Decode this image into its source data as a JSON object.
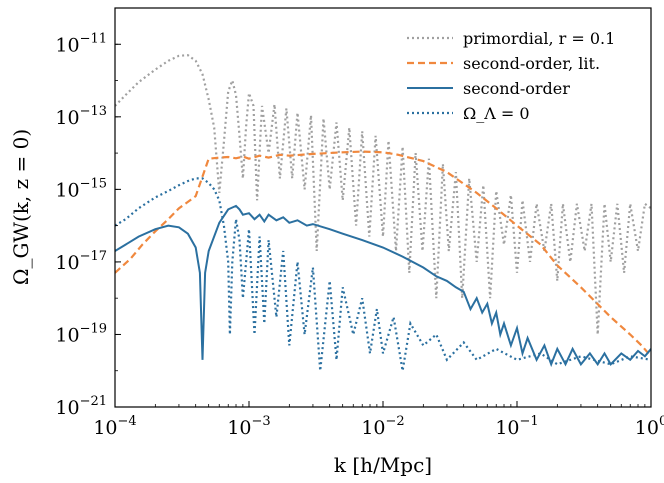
{
  "chart_data": {
    "type": "line",
    "xlabel": "k [h/Mpc]",
    "ylabel": "Ω_GW(k, z = 0)",
    "x_scale": "log",
    "y_scale": "log",
    "xlim": [
      0.0001,
      1
    ],
    "ylim": [
      1e-21,
      1e-10
    ],
    "x_ticks": [
      {
        "value": 0.0001,
        "base": "10",
        "exp": "−4"
      },
      {
        "value": 0.001,
        "base": "10",
        "exp": "−3"
      },
      {
        "value": 0.01,
        "base": "10",
        "exp": "−2"
      },
      {
        "value": 0.1,
        "base": "10",
        "exp": "−1"
      },
      {
        "value": 1,
        "base": "10",
        "exp": "0"
      }
    ],
    "y_ticks": [
      {
        "value": 1e-21,
        "base": "10",
        "exp": "−21"
      },
      {
        "value": 1e-19,
        "base": "10",
        "exp": "−19"
      },
      {
        "value": 1e-17,
        "base": "10",
        "exp": "−17"
      },
      {
        "value": 1e-15,
        "base": "10",
        "exp": "−15"
      },
      {
        "value": 1e-13,
        "base": "10",
        "exp": "−13"
      },
      {
        "value": 1e-11,
        "base": "10",
        "exp": "−11"
      }
    ],
    "grid": false,
    "legend_position": "top-right",
    "series": [
      {
        "name": "primordial, r = 0.1",
        "color": "#a0a0a0",
        "style": "dotted",
        "points": [
          [
            0.0001,
            2e-13
          ],
          [
            0.00012,
            4e-13
          ],
          [
            0.00015,
            9e-13
          ],
          [
            0.0002,
            2e-12
          ],
          [
            0.00025,
            3.5e-12
          ],
          [
            0.0003,
            4.8e-12
          ],
          [
            0.00035,
            5e-12
          ],
          [
            0.0004,
            3.5e-12
          ],
          [
            0.00045,
            1.5e-12
          ],
          [
            0.0005,
            3e-13
          ],
          [
            0.00055,
            5e-14
          ],
          [
            0.0006,
            8e-16
          ],
          [
            0.00065,
            2e-14
          ],
          [
            0.0007,
            5e-13
          ],
          [
            0.00075,
            1e-12
          ],
          [
            0.0008,
            4e-13
          ],
          [
            0.00085,
            3e-14
          ],
          [
            0.0009,
            2e-15
          ],
          [
            0.00095,
            5e-14
          ],
          [
            0.001,
            4.5e-13
          ],
          [
            0.00108,
            2e-13
          ],
          [
            0.00115,
            5e-16
          ],
          [
            0.00125,
            2e-13
          ],
          [
            0.0014,
            1e-14
          ],
          [
            0.00155,
            2.2e-13
          ],
          [
            0.0017,
            2e-15
          ],
          [
            0.0019,
            1.7e-13
          ],
          [
            0.0021,
            2e-15
          ],
          [
            0.0023,
            1.3e-13
          ],
          [
            0.0026,
            1e-15
          ],
          [
            0.0029,
            1.1e-13
          ],
          [
            0.0032,
            2e-17
          ],
          [
            0.0036,
            9e-14
          ],
          [
            0.004,
            1e-15
          ],
          [
            0.0045,
            7e-14
          ],
          [
            0.005,
            5e-16
          ],
          [
            0.0056,
            5e-14
          ],
          [
            0.0063,
            1e-16
          ],
          [
            0.007,
            4e-14
          ],
          [
            0.0079,
            5e-17
          ],
          [
            0.0088,
            3e-14
          ],
          [
            0.01,
            5e-17
          ],
          [
            0.011,
            2.2e-14
          ],
          [
            0.0125,
            2e-17
          ],
          [
            0.014,
            1.5e-14
          ],
          [
            0.0157,
            5e-18
          ],
          [
            0.0175,
            1e-14
          ],
          [
            0.0197,
            2e-17
          ],
          [
            0.022,
            7e-15
          ],
          [
            0.025,
            1e-18
          ],
          [
            0.028,
            5e-15
          ],
          [
            0.031,
            2e-17
          ],
          [
            0.035,
            3e-15
          ],
          [
            0.039,
            1e-18
          ],
          [
            0.044,
            2e-15
          ],
          [
            0.05,
            1e-17
          ],
          [
            0.056,
            1.3e-15
          ],
          [
            0.063,
            1e-18
          ],
          [
            0.07,
            9e-16
          ],
          [
            0.08,
            3e-17
          ],
          [
            0.09,
            7e-16
          ],
          [
            0.1,
            5e-18
          ],
          [
            0.11,
            5e-16
          ],
          [
            0.125,
            1e-17
          ],
          [
            0.14,
            4e-16
          ],
          [
            0.16,
            2e-17
          ],
          [
            0.18,
            4e-16
          ],
          [
            0.2,
            3e-18
          ],
          [
            0.22,
            4e-16
          ],
          [
            0.25,
            1e-17
          ],
          [
            0.28,
            4e-16
          ],
          [
            0.32,
            2e-17
          ],
          [
            0.36,
            4e-16
          ],
          [
            0.4,
            1e-19
          ],
          [
            0.45,
            4e-16
          ],
          [
            0.5,
            1e-17
          ],
          [
            0.56,
            4e-16
          ],
          [
            0.63,
            5e-18
          ],
          [
            0.7,
            4e-16
          ],
          [
            0.8,
            2e-17
          ],
          [
            0.9,
            4e-16
          ],
          [
            1,
            3e-16
          ]
        ]
      },
      {
        "name": "second-order, lit.",
        "color": "#f0883e",
        "style": "dashed",
        "points": [
          [
            0.0001,
            5e-18
          ],
          [
            0.00013,
            1.2e-17
          ],
          [
            0.00016,
            3e-17
          ],
          [
            0.0002,
            7e-17
          ],
          [
            0.00025,
            1.5e-16
          ],
          [
            0.0003,
            3e-16
          ],
          [
            0.00035,
            4.5e-16
          ],
          [
            0.0004,
            6.5e-16
          ],
          [
            0.0005,
            7e-15
          ],
          [
            0.0006,
            7.5e-15
          ],
          [
            0.0007,
            7.8e-15
          ],
          [
            0.0008,
            7.2e-15
          ],
          [
            0.0009,
            8e-15
          ],
          [
            0.001,
            7e-15
          ],
          [
            0.0012,
            8.5e-15
          ],
          [
            0.0014,
            7.5e-15
          ],
          [
            0.0017,
            9e-15
          ],
          [
            0.002,
            8.5e-15
          ],
          [
            0.003,
            9.5e-15
          ],
          [
            0.005,
            1.05e-14
          ],
          [
            0.007,
            1.1e-14
          ],
          [
            0.01,
            1.05e-14
          ],
          [
            0.013,
            9e-15
          ],
          [
            0.02,
            6e-15
          ],
          [
            0.03,
            3e-15
          ],
          [
            0.05,
            8e-16
          ],
          [
            0.07,
            3e-16
          ],
          [
            0.1,
            1e-16
          ],
          [
            0.15,
            3e-17
          ],
          [
            0.2,
            8e-18
          ],
          [
            0.3,
            2e-18
          ],
          [
            0.5,
            3e-19
          ],
          [
            0.7,
            1e-19
          ],
          [
            0.85,
            5e-20
          ],
          [
            1,
            2.5e-20
          ]
        ]
      },
      {
        "name": "second-order",
        "color": "#2b70a0",
        "style": "solid",
        "points": [
          [
            0.0001,
            2e-17
          ],
          [
            0.00012,
            3e-17
          ],
          [
            0.00015,
            5e-17
          ],
          [
            0.0002,
            8e-17
          ],
          [
            0.00025,
            1e-16
          ],
          [
            0.0003,
            9e-17
          ],
          [
            0.00035,
            6e-17
          ],
          [
            0.0004,
            2.5e-17
          ],
          [
            0.00043,
            5e-18
          ],
          [
            0.00045,
            2e-20
          ],
          [
            0.00047,
            5e-18
          ],
          [
            0.0005,
            2e-17
          ],
          [
            0.0006,
            1.2e-16
          ],
          [
            0.0007,
            2.8e-16
          ],
          [
            0.0008,
            3.5e-16
          ],
          [
            0.00085,
            2.8e-16
          ],
          [
            0.0009,
            2e-16
          ],
          [
            0.001,
            2.2e-16
          ],
          [
            0.0011,
            1.5e-16
          ],
          [
            0.0012,
            2e-16
          ],
          [
            0.0013,
            1.3e-16
          ],
          [
            0.0014,
            2e-16
          ],
          [
            0.0016,
            1.4e-16
          ],
          [
            0.0018,
            1.7e-16
          ],
          [
            0.002,
            1.2e-16
          ],
          [
            0.0023,
            1.4e-16
          ],
          [
            0.0027,
            1e-16
          ],
          [
            0.003,
            1.1e-16
          ],
          [
            0.004,
            8e-17
          ],
          [
            0.005,
            6e-17
          ],
          [
            0.007,
            4e-17
          ],
          [
            0.01,
            2.5e-17
          ],
          [
            0.014,
            1.4e-17
          ],
          [
            0.02,
            7e-18
          ],
          [
            0.025,
            4e-18
          ],
          [
            0.03,
            3e-18
          ],
          [
            0.035,
            2e-18
          ],
          [
            0.04,
            1.5e-18
          ],
          [
            0.045,
            5e-19
          ],
          [
            0.05,
            1e-18
          ],
          [
            0.055,
            4e-19
          ],
          [
            0.06,
            7e-19
          ],
          [
            0.065,
            2e-19
          ],
          [
            0.07,
            4e-19
          ],
          [
            0.075,
            1e-19
          ],
          [
            0.08,
            2e-19
          ],
          [
            0.09,
            5e-20
          ],
          [
            0.1,
            1.5e-19
          ],
          [
            0.11,
            3e-20
          ],
          [
            0.12,
            8e-20
          ],
          [
            0.14,
            2e-20
          ],
          [
            0.16,
            5e-20
          ],
          [
            0.18,
            1.5e-20
          ],
          [
            0.2,
            4e-20
          ],
          [
            0.23,
            1.5e-20
          ],
          [
            0.26,
            4e-20
          ],
          [
            0.3,
            1.5e-20
          ],
          [
            0.35,
            3e-20
          ],
          [
            0.4,
            1.5e-20
          ],
          [
            0.45,
            3e-20
          ],
          [
            0.5,
            1.5e-20
          ],
          [
            0.6,
            3e-20
          ],
          [
            0.7,
            2e-20
          ],
          [
            0.8,
            3.5e-20
          ],
          [
            0.9,
            2.5e-20
          ],
          [
            1,
            4e-20
          ]
        ]
      },
      {
        "name": "Ω_Λ = 0",
        "color": "#2b70a0",
        "style": "dotted",
        "points": [
          [
            0.0001,
            1e-16
          ],
          [
            0.00012,
            1.5e-16
          ],
          [
            0.00015,
            3e-16
          ],
          [
            0.0002,
            6e-16
          ],
          [
            0.00025,
            9e-16
          ],
          [
            0.0003,
            1.3e-15
          ],
          [
            0.00035,
            1.7e-15
          ],
          [
            0.0004,
            2e-15
          ],
          [
            0.00045,
            2e-15
          ],
          [
            0.0005,
            1.5e-15
          ],
          [
            0.00055,
            1e-15
          ],
          [
            0.0006,
            5e-16
          ],
          [
            0.00065,
            1e-16
          ],
          [
            0.0007,
            1e-17
          ],
          [
            0.00072,
            1e-19
          ],
          [
            0.00075,
            1e-17
          ],
          [
            0.0008,
            1.5e-16
          ],
          [
            0.00085,
            4e-17
          ],
          [
            0.0009,
            1e-18
          ],
          [
            0.001,
            8e-17
          ],
          [
            0.0011,
            1e-19
          ],
          [
            0.0012,
            5e-17
          ],
          [
            0.0013,
            2e-19
          ],
          [
            0.0014,
            4e-17
          ],
          [
            0.0016,
            3e-19
          ],
          [
            0.0018,
            2e-17
          ],
          [
            0.002,
            5e-20
          ],
          [
            0.0023,
            1e-17
          ],
          [
            0.0026,
            1e-19
          ],
          [
            0.003,
            7e-18
          ],
          [
            0.0034,
            1e-20
          ],
          [
            0.004,
            3e-18
          ],
          [
            0.0045,
            2e-20
          ],
          [
            0.005,
            2e-18
          ],
          [
            0.006,
            1e-19
          ],
          [
            0.007,
            1e-18
          ],
          [
            0.008,
            3e-20
          ],
          [
            0.009,
            5e-19
          ],
          [
            0.01,
            3e-20
          ],
          [
            0.012,
            3e-19
          ],
          [
            0.014,
            1e-20
          ],
          [
            0.016,
            2e-19
          ],
          [
            0.02,
            5e-20
          ],
          [
            0.025,
            1e-19
          ],
          [
            0.03,
            2e-20
          ],
          [
            0.04,
            6e-20
          ],
          [
            0.05,
            2e-20
          ],
          [
            0.07,
            4e-20
          ],
          [
            0.1,
            2e-20
          ],
          [
            0.15,
            3e-20
          ],
          [
            0.2,
            1.5e-20
          ],
          [
            0.3,
            2.5e-20
          ],
          [
            0.5,
            1.5e-20
          ],
          [
            0.7,
            2.5e-20
          ],
          [
            1,
            2e-20
          ]
        ]
      }
    ]
  }
}
